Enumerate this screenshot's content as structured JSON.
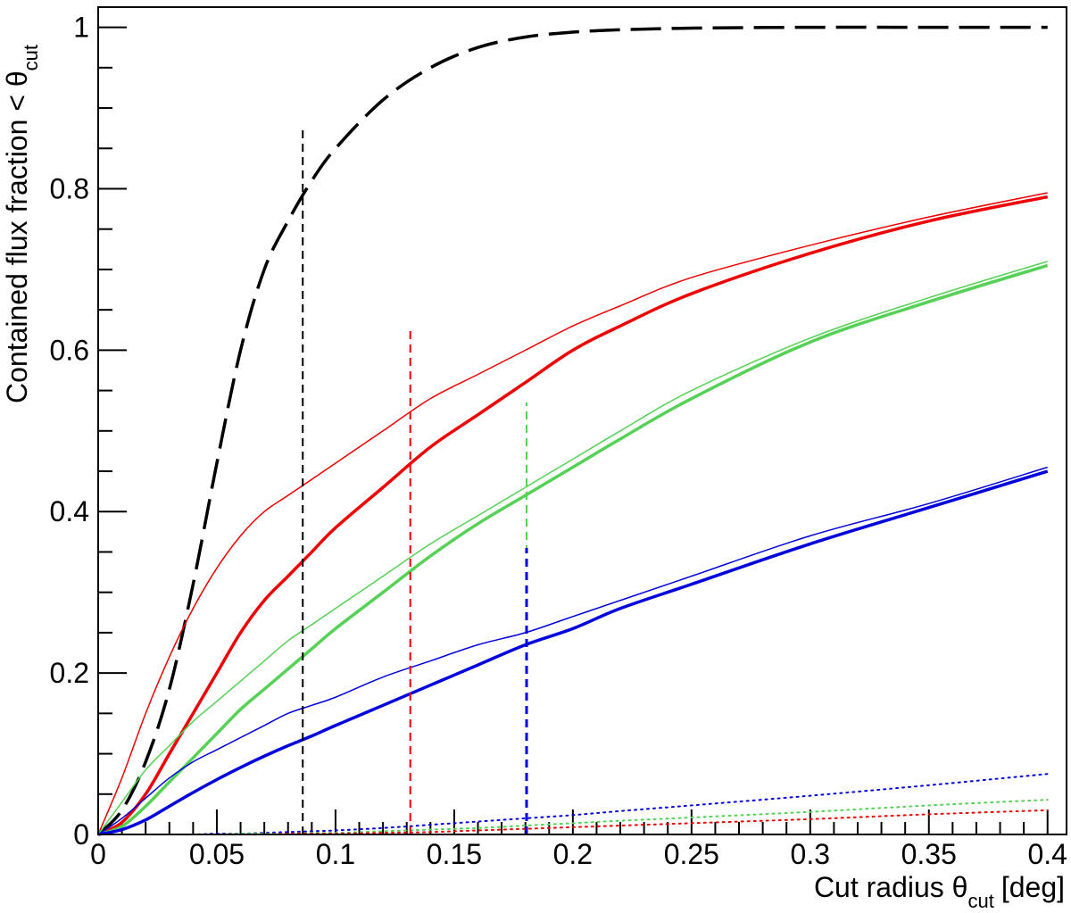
{
  "chart_data": {
    "type": "line",
    "xlabel_main": "Cut radius θ",
    "xlabel_sub": "cut",
    "xlabel_unit": "[deg]",
    "ylabel_main": "Contained flux fraction < θ",
    "ylabel_sub": "cut",
    "xlim": [
      0,
      0.408
    ],
    "ylim": [
      0,
      1.025
    ],
    "x_ticks": [
      "0",
      "0.05",
      "0.1",
      "0.15",
      "0.2",
      "0.25",
      "0.3",
      "0.35",
      "0.4"
    ],
    "y_ticks": [
      "0",
      "0.2",
      "0.4",
      "0.6",
      "0.8",
      "1"
    ],
    "grid": false,
    "x": [
      0,
      0.01,
      0.02,
      0.03,
      0.04,
      0.05,
      0.06,
      0.07,
      0.08,
      0.09,
      0.1,
      0.12,
      0.14,
      0.16,
      0.18,
      0.2,
      0.22,
      0.25,
      0.3,
      0.35,
      0.4
    ],
    "series": [
      {
        "color": "#000000",
        "style": "long-dash",
        "width": 3.5,
        "values": [
          0,
          0.03,
          0.09,
          0.18,
          0.31,
          0.46,
          0.6,
          0.7,
          0.76,
          0.81,
          0.85,
          0.91,
          0.95,
          0.975,
          0.988,
          0.994,
          0.997,
          0.999,
          1,
          1,
          1
        ]
      },
      {
        "color": "#ee0000",
        "style": "solid",
        "width": 1.5,
        "values": [
          0,
          0.07,
          0.15,
          0.22,
          0.28,
          0.33,
          0.37,
          0.4,
          0.42,
          0.44,
          0.46,
          0.5,
          0.54,
          0.57,
          0.6,
          0.63,
          0.655,
          0.69,
          0.73,
          0.765,
          0.795
        ]
      },
      {
        "color": "#ee0000",
        "style": "solid",
        "width": 3.5,
        "values": [
          0,
          0.015,
          0.05,
          0.1,
          0.15,
          0.2,
          0.25,
          0.29,
          0.32,
          0.35,
          0.38,
          0.43,
          0.48,
          0.52,
          0.56,
          0.6,
          0.63,
          0.67,
          0.72,
          0.76,
          0.79
        ]
      },
      {
        "color": "#55d155",
        "style": "solid",
        "width": 1.5,
        "values": [
          0,
          0.04,
          0.08,
          0.11,
          0.14,
          0.165,
          0.19,
          0.215,
          0.24,
          0.26,
          0.28,
          0.32,
          0.36,
          0.395,
          0.43,
          0.465,
          0.5,
          0.55,
          0.615,
          0.665,
          0.71
        ]
      },
      {
        "color": "#55d155",
        "style": "solid",
        "width": 3.5,
        "values": [
          0,
          0.01,
          0.035,
          0.065,
          0.095,
          0.125,
          0.155,
          0.18,
          0.205,
          0.23,
          0.255,
          0.3,
          0.345,
          0.385,
          0.42,
          0.455,
          0.49,
          0.54,
          0.61,
          0.66,
          0.705
        ]
      },
      {
        "color": "#0000dd",
        "style": "solid",
        "width": 1.5,
        "values": [
          0,
          0.02,
          0.045,
          0.07,
          0.09,
          0.105,
          0.12,
          0.135,
          0.15,
          0.16,
          0.17,
          0.195,
          0.215,
          0.235,
          0.25,
          0.27,
          0.29,
          0.32,
          0.37,
          0.41,
          0.455
        ]
      },
      {
        "color": "#0000dd",
        "style": "solid",
        "width": 3.5,
        "values": [
          0,
          0.006,
          0.018,
          0.035,
          0.052,
          0.068,
          0.083,
          0.097,
          0.11,
          0.122,
          0.135,
          0.16,
          0.185,
          0.21,
          0.235,
          0.255,
          0.28,
          0.31,
          0.36,
          0.405,
          0.45
        ]
      },
      {
        "color": "#0000dd",
        "style": "dotted",
        "width": 2,
        "values": [
          0,
          0,
          0,
          0,
          0,
          0.001,
          0.001,
          0.002,
          0.003,
          0.004,
          0.005,
          0.008,
          0.012,
          0.016,
          0.02,
          0.024,
          0.029,
          0.036,
          0.048,
          0.061,
          0.075
        ]
      },
      {
        "color": "#55d155",
        "style": "dotted",
        "width": 2,
        "values": [
          0,
          0,
          0,
          0,
          0,
          0,
          0.001,
          0.001,
          0.001,
          0.002,
          0.002,
          0.004,
          0.006,
          0.008,
          0.011,
          0.014,
          0.017,
          0.021,
          0.028,
          0.036,
          0.043
        ]
      },
      {
        "color": "#ee0000",
        "style": "dotted",
        "width": 2,
        "values": [
          0,
          0,
          0,
          0,
          0,
          0,
          0,
          0,
          0.001,
          0.001,
          0.001,
          0.002,
          0.003,
          0.005,
          0.007,
          0.009,
          0.011,
          0.014,
          0.019,
          0.025,
          0.03
        ]
      }
    ],
    "vertical_markers": [
      {
        "color": "#000000",
        "x": 0.0862,
        "y_top": 0.875,
        "width": 2
      },
      {
        "color": "#ee0000",
        "x": 0.1315,
        "y_top": 0.625,
        "width": 2
      },
      {
        "color": "#55d155",
        "x": 0.1805,
        "y_top": 0.535,
        "width": 2
      },
      {
        "color": "#0000dd",
        "x": 0.1805,
        "y_top": 0.355,
        "width": 3
      }
    ]
  }
}
